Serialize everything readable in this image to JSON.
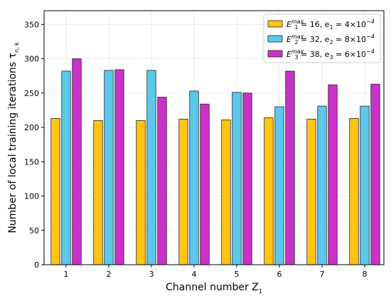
{
  "chart_data": {
    "type": "bar",
    "categories": [
      "1",
      "2",
      "3",
      "4",
      "5",
      "6",
      "7",
      "8"
    ],
    "series": [
      {
        "legend": {
          "e_sup": "max",
          "e_sub": "1",
          "mid": " = 16, e",
          "e2_sub": "1",
          "tail": " = 4×10",
          "exp": "−4"
        },
        "color": "#FFC414",
        "values": [
          213,
          210,
          210,
          212,
          211,
          214,
          212,
          213
        ]
      },
      {
        "legend": {
          "e_sup": "max",
          "e_sub": "2",
          "mid": " = 32, e",
          "e2_sub": "2",
          "tail": " = 8×10",
          "exp": "−4"
        },
        "color": "#5BC8EC",
        "values": [
          282,
          283,
          283,
          253,
          251,
          230,
          231,
          231
        ]
      },
      {
        "legend": {
          "e_sup": "max",
          "e_sub": "3",
          "mid": " = 38, e",
          "e2_sub": "3",
          "tail": " = 6×10",
          "exp": "−4"
        },
        "color": "#C832C8",
        "values": [
          300,
          284,
          244,
          234,
          250,
          282,
          262,
          263
        ]
      }
    ],
    "xlabel": {
      "main": "Channel number Z",
      "sub": "1"
    },
    "ylabel": {
      "main": "Number of local training iterations τ",
      "sub": "n, k"
    },
    "ylim": [
      0,
      370
    ],
    "yticks": [
      "0",
      "50",
      "100",
      "150",
      "200",
      "250",
      "300",
      "350"
    ],
    "ytick_values": [
      0,
      50,
      100,
      150,
      200,
      250,
      300,
      350
    ],
    "grid": true,
    "legend_position": "top-right"
  }
}
